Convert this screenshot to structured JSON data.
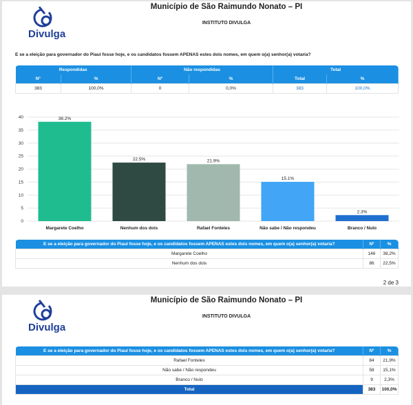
{
  "header": {
    "title": "Município de São Raimundo Nonato – PI",
    "institute": "INSTITUTO DIVULGA",
    "logo_text": "Divulga"
  },
  "question": "E se a eleição para governador do Piauí fosse hoje, e os candidatos fossem APENAS estes dois nomes, em quem o(a) senhor(a) votaria?",
  "summary": {
    "groups": [
      "Respondidas",
      "Não respondidas",
      "Total"
    ],
    "subheaders": [
      "Nº",
      "%",
      "Nº",
      "%",
      "Total",
      "%"
    ],
    "row": [
      "383",
      "100,0%",
      "0",
      "0,0%",
      "383",
      "100,0%"
    ]
  },
  "chart_data": {
    "type": "bar",
    "categories": [
      "Margarete Coelho",
      "Nenhum dos dois",
      "Rafael Fonteles",
      "Não sabe / Não respondeu",
      "Branco / Nulo"
    ],
    "values": [
      38.2,
      22.5,
      21.9,
      15.1,
      2.3
    ],
    "data_labels": [
      "38.2%",
      "22.5%",
      "21.9%",
      "15.1%",
      "2.3%"
    ],
    "colors": [
      "#1fbc8f",
      "#2f4a42",
      "#a1b8ae",
      "#42a5f5",
      "#1e6fd0"
    ],
    "ylim": [
      0,
      40
    ],
    "yticks": [
      "0",
      "5",
      "10",
      "15",
      "20",
      "25",
      "30",
      "35",
      "40"
    ],
    "grid": true
  },
  "results_table": {
    "headers": [
      "Nº",
      "%"
    ],
    "rows_page1": [
      [
        "Margarete Coelho",
        "146",
        "38,2%"
      ],
      [
        "Nenhum dos dois",
        "86",
        "22,5%"
      ]
    ],
    "rows_page2": [
      [
        "Rafael Fonteles",
        "84",
        "21,9%"
      ],
      [
        "Não sabe / Não respondeu",
        "58",
        "15,1%"
      ],
      [
        "Branco / Nulo",
        "9",
        "2,3%"
      ]
    ],
    "total": [
      "Total",
      "383",
      "100,0%"
    ]
  },
  "page_number": "2 de 3",
  "colors": {
    "header_blue": "#1b90e2",
    "total_blue": "#1565c0"
  }
}
